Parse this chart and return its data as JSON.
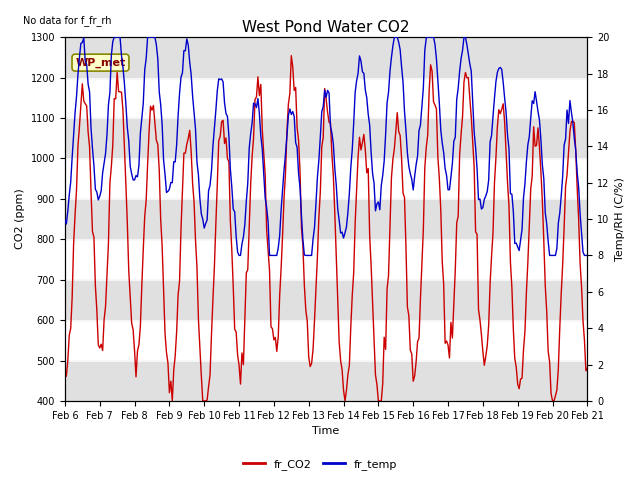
{
  "title": "West Pond Water CO2",
  "no_data_text": "No data for f_fr_rh",
  "wp_met_label": "WP_met",
  "xlabel": "Time",
  "ylabel_left": "CO2 (ppm)",
  "ylabel_right": "Temp/RH (C/%)",
  "ylim_left": [
    400,
    1300
  ],
  "ylim_right": [
    0,
    20
  ],
  "xlim": [
    0,
    360
  ],
  "xtick_labels": [
    "Feb 6",
    "Feb 7",
    "Feb 8",
    "Feb 9",
    "Feb 10",
    "Feb 11",
    "Feb 12",
    "Feb 13",
    "Feb 14",
    "Feb 15",
    "Feb 16",
    "Feb 17",
    "Feb 18",
    "Feb 19",
    "Feb 20",
    "Feb 21"
  ],
  "xtick_positions": [
    0,
    24,
    48,
    72,
    96,
    120,
    144,
    168,
    192,
    216,
    240,
    264,
    288,
    312,
    336,
    360
  ],
  "legend_items": [
    "fr_CO2",
    "fr_temp"
  ],
  "gray_band_color": "#e0e0e0",
  "line_color_co2": "#cc0000",
  "line_color_temp": "#0000cc",
  "background_color": "#ffffff",
  "title_fontsize": 11,
  "axis_label_fontsize": 8,
  "tick_fontsize": 7,
  "wp_met_bg": "#ffffcc",
  "wp_met_border": "#888800",
  "wp_met_text_color": "#880000"
}
